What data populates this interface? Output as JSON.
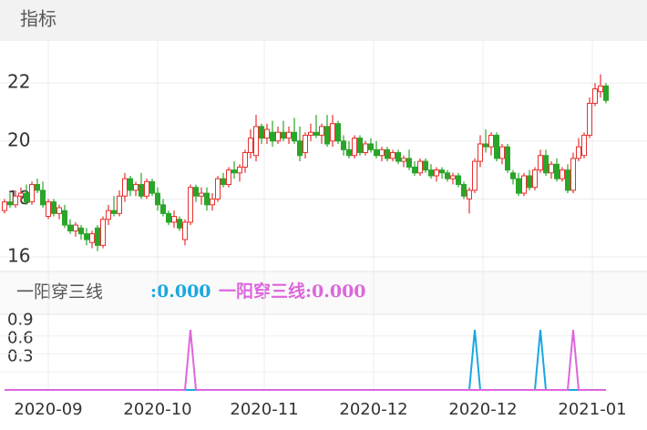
{
  "header": {
    "title": "指标"
  },
  "chart_data": [
    {
      "type": "candlestick",
      "ohlc": [
        [
          17.6,
          18.0,
          17.5,
          17.9
        ],
        [
          17.9,
          18.2,
          17.7,
          17.8
        ],
        [
          17.8,
          18.3,
          17.7,
          18.1
        ],
        [
          18.1,
          18.4,
          17.9,
          18.2
        ],
        [
          18.2,
          18.5,
          17.8,
          17.9
        ],
        [
          17.9,
          18.6,
          17.8,
          18.5
        ],
        [
          18.5,
          18.7,
          18.2,
          18.3
        ],
        [
          18.3,
          18.6,
          17.7,
          17.8
        ],
        [
          17.4,
          18.0,
          17.3,
          17.9
        ],
        [
          17.9,
          18.0,
          17.4,
          17.5
        ],
        [
          17.5,
          17.8,
          17.3,
          17.7
        ],
        [
          17.6,
          17.8,
          17.0,
          17.1
        ],
        [
          17.1,
          17.3,
          16.8,
          16.9
        ],
        [
          16.9,
          17.2,
          16.7,
          17.1
        ],
        [
          17.0,
          17.1,
          16.6,
          16.8
        ],
        [
          16.8,
          17.0,
          16.4,
          16.6
        ],
        [
          16.5,
          16.9,
          16.3,
          16.8
        ],
        [
          17.0,
          17.1,
          16.2,
          16.4
        ],
        [
          16.4,
          17.4,
          16.3,
          17.3
        ],
        [
          17.3,
          17.8,
          17.1,
          17.6
        ],
        [
          17.6,
          18.1,
          17.4,
          17.5
        ],
        [
          17.5,
          18.3,
          17.4,
          18.1
        ],
        [
          18.1,
          18.9,
          17.9,
          18.7
        ],
        [
          18.7,
          18.8,
          18.1,
          18.3
        ],
        [
          18.3,
          18.6,
          18.1,
          18.5
        ],
        [
          18.5,
          18.9,
          18.0,
          18.1
        ],
        [
          18.1,
          18.7,
          18.0,
          18.6
        ],
        [
          18.6,
          18.7,
          18.1,
          18.2
        ],
        [
          18.2,
          18.4,
          17.6,
          17.8
        ],
        [
          17.8,
          18.0,
          17.4,
          17.5
        ],
        [
          17.5,
          17.6,
          17.1,
          17.2
        ],
        [
          17.2,
          17.6,
          17.0,
          17.4
        ],
        [
          17.3,
          17.4,
          16.9,
          17.0
        ],
        [
          16.6,
          17.3,
          16.4,
          17.2
        ],
        [
          17.2,
          18.5,
          17.1,
          18.4
        ],
        [
          18.4,
          18.5,
          17.9,
          18.1
        ],
        [
          18.1,
          18.4,
          17.8,
          18.2
        ],
        [
          18.2,
          18.4,
          17.6,
          17.8
        ],
        [
          17.8,
          18.2,
          17.6,
          18.0
        ],
        [
          18.0,
          18.8,
          17.9,
          18.7
        ],
        [
          18.7,
          18.9,
          18.4,
          18.5
        ],
        [
          18.5,
          19.1,
          18.4,
          19.0
        ],
        [
          19.0,
          19.3,
          18.7,
          18.9
        ],
        [
          18.9,
          19.2,
          18.6,
          19.1
        ],
        [
          19.1,
          19.7,
          18.9,
          19.6
        ],
        [
          19.6,
          20.4,
          19.4,
          20.1
        ],
        [
          19.5,
          20.9,
          19.3,
          20.5
        ],
        [
          20.5,
          20.6,
          19.9,
          20.1
        ],
        [
          20.1,
          20.6,
          19.9,
          20.4
        ],
        [
          20.3,
          20.7,
          19.8,
          20.0
        ],
        [
          20.0,
          20.5,
          19.9,
          20.3
        ],
        [
          20.3,
          20.7,
          20.0,
          20.1
        ],
        [
          20.1,
          20.5,
          19.9,
          20.3
        ],
        [
          20.3,
          20.8,
          19.9,
          20.0
        ],
        [
          20.0,
          20.5,
          19.3,
          19.5
        ],
        [
          19.6,
          20.3,
          19.4,
          20.2
        ],
        [
          20.2,
          20.6,
          20.0,
          20.3
        ],
        [
          20.3,
          20.9,
          20.1,
          20.2
        ],
        [
          20.2,
          20.6,
          19.9,
          20.5
        ],
        [
          20.5,
          20.9,
          19.8,
          19.9
        ],
        [
          20.0,
          20.9,
          19.8,
          20.6
        ],
        [
          20.6,
          20.7,
          19.9,
          20.0
        ],
        [
          20.0,
          20.2,
          19.5,
          19.7
        ],
        [
          19.7,
          20.0,
          19.4,
          19.5
        ],
        [
          19.5,
          20.2,
          19.4,
          20.1
        ],
        [
          20.1,
          20.2,
          19.5,
          19.6
        ],
        [
          19.6,
          20.0,
          19.5,
          19.9
        ],
        [
          19.9,
          20.1,
          19.6,
          19.7
        ],
        [
          19.7,
          20.0,
          19.4,
          19.5
        ],
        [
          19.5,
          19.8,
          19.3,
          19.7
        ],
        [
          19.7,
          19.8,
          19.3,
          19.4
        ],
        [
          19.4,
          19.7,
          19.3,
          19.6
        ],
        [
          19.6,
          19.7,
          19.2,
          19.3
        ],
        [
          19.3,
          19.5,
          19.1,
          19.4
        ],
        [
          19.4,
          19.7,
          19.0,
          19.1
        ],
        [
          19.1,
          19.3,
          18.8,
          18.9
        ],
        [
          18.9,
          19.4,
          18.8,
          19.3
        ],
        [
          19.3,
          19.4,
          18.9,
          19.0
        ],
        [
          19.0,
          19.2,
          18.7,
          18.8
        ],
        [
          18.8,
          19.1,
          18.6,
          19.0
        ],
        [
          19.0,
          19.1,
          18.7,
          18.9
        ],
        [
          18.9,
          19.0,
          18.6,
          18.7
        ],
        [
          18.7,
          18.9,
          18.5,
          18.8
        ],
        [
          18.8,
          18.9,
          18.4,
          18.5
        ],
        [
          18.5,
          18.6,
          18.0,
          18.1
        ],
        [
          18.0,
          18.4,
          17.5,
          18.3
        ],
        [
          18.3,
          19.4,
          18.2,
          19.3
        ],
        [
          19.3,
          20.2,
          19.1,
          19.9
        ],
        [
          19.9,
          20.4,
          19.6,
          19.8
        ],
        [
          19.8,
          20.3,
          19.5,
          20.2
        ],
        [
          20.2,
          20.3,
          19.3,
          19.4
        ],
        [
          19.4,
          19.9,
          19.2,
          19.8
        ],
        [
          19.8,
          19.9,
          18.9,
          19.0
        ],
        [
          18.9,
          19.0,
          18.5,
          18.7
        ],
        [
          18.7,
          18.9,
          18.1,
          18.2
        ],
        [
          18.2,
          18.9,
          18.1,
          18.8
        ],
        [
          18.8,
          19.0,
          18.3,
          18.4
        ],
        [
          18.4,
          19.1,
          18.3,
          19.0
        ],
        [
          19.0,
          19.7,
          18.9,
          19.5
        ],
        [
          19.5,
          19.7,
          18.8,
          18.9
        ],
        [
          18.9,
          19.3,
          18.7,
          19.2
        ],
        [
          19.2,
          19.4,
          18.6,
          18.7
        ],
        [
          18.7,
          19.1,
          18.6,
          19.0
        ],
        [
          19.0,
          19.2,
          18.2,
          18.3
        ],
        [
          18.3,
          19.6,
          18.2,
          19.4
        ],
        [
          19.4,
          20.1,
          19.3,
          19.8
        ],
        [
          19.5,
          20.3,
          19.4,
          20.2
        ],
        [
          20.2,
          21.5,
          20.1,
          21.3
        ],
        [
          21.3,
          22.0,
          21.2,
          21.8
        ],
        [
          21.7,
          22.3,
          21.5,
          21.9
        ],
        [
          21.9,
          22.0,
          21.3,
          21.4
        ]
      ],
      "colors": {
        "up": "#e8312f",
        "down": "#2aa52a"
      },
      "ylim": [
        15.5,
        23.45
      ],
      "yticks": [
        16,
        18,
        20,
        22
      ],
      "xticks": [
        {
          "value": 8,
          "label": "2020-09"
        },
        {
          "value": 28,
          "label": "2020-10"
        },
        {
          "value": 47.5,
          "label": "2020-11"
        },
        {
          "value": 67.5,
          "label": "2020-12"
        },
        {
          "value": 87.5,
          "label": "2020-12"
        },
        {
          "value": 107.5,
          "label": "2021-01"
        }
      ],
      "grid": true
    },
    {
      "type": "line",
      "title": "一阳穿三线",
      "series": [
        {
          "label": ":0.000",
          "color": "#1aa7e0",
          "values": [
            0,
            0,
            0,
            0,
            0,
            0,
            0,
            0,
            0,
            0,
            0,
            0,
            0,
            0,
            0,
            0,
            0,
            0,
            0,
            0,
            0,
            0,
            0,
            0,
            0,
            0,
            0,
            0,
            0,
            0,
            0,
            0,
            0,
            0,
            0,
            0,
            0,
            0,
            0,
            0,
            0,
            0,
            0,
            0,
            0,
            0,
            0,
            0,
            0,
            0,
            0,
            0,
            0,
            0,
            0,
            0,
            0,
            0,
            0,
            0,
            0,
            0,
            0,
            0,
            0,
            0,
            0,
            0,
            0,
            0,
            0,
            0,
            0,
            0,
            0,
            0,
            0,
            0,
            0,
            0,
            0,
            0,
            0,
            0,
            0,
            0,
            1,
            0,
            0,
            0,
            0,
            0,
            0,
            0,
            0,
            0,
            0,
            0,
            1,
            0,
            0,
            0,
            0,
            0,
            0,
            0,
            0,
            0,
            0,
            0,
            0
          ]
        },
        {
          "label": "一阳穿三线:0.000",
          "color": "#dd66dd",
          "values": [
            0,
            0,
            0,
            0,
            0,
            0,
            0,
            0,
            0,
            0,
            0,
            0,
            0,
            0,
            0,
            0,
            0,
            0,
            0,
            0,
            0,
            0,
            0,
            0,
            0,
            0,
            0,
            0,
            0,
            0,
            0,
            0,
            0,
            0,
            1,
            0,
            0,
            0,
            0,
            0,
            0,
            0,
            0,
            0,
            0,
            0,
            0,
            0,
            0,
            0,
            0,
            0,
            0,
            0,
            0,
            0,
            0,
            0,
            0,
            0,
            0,
            0,
            0,
            0,
            0,
            0,
            0,
            0,
            0,
            0,
            0,
            0,
            0,
            0,
            0,
            0,
            0,
            0,
            0,
            0,
            0,
            0,
            0,
            0,
            0,
            0,
            0,
            0,
            0,
            0,
            0,
            0,
            0,
            0,
            0,
            0,
            0,
            0,
            0,
            0,
            0,
            0,
            0,
            0,
            1,
            0,
            0,
            0,
            0,
            0,
            0
          ]
        }
      ],
      "ylim": [
        -0.03,
        1.26
      ],
      "yticks": [
        0.3,
        0.6,
        0.9
      ],
      "grid": true
    }
  ]
}
